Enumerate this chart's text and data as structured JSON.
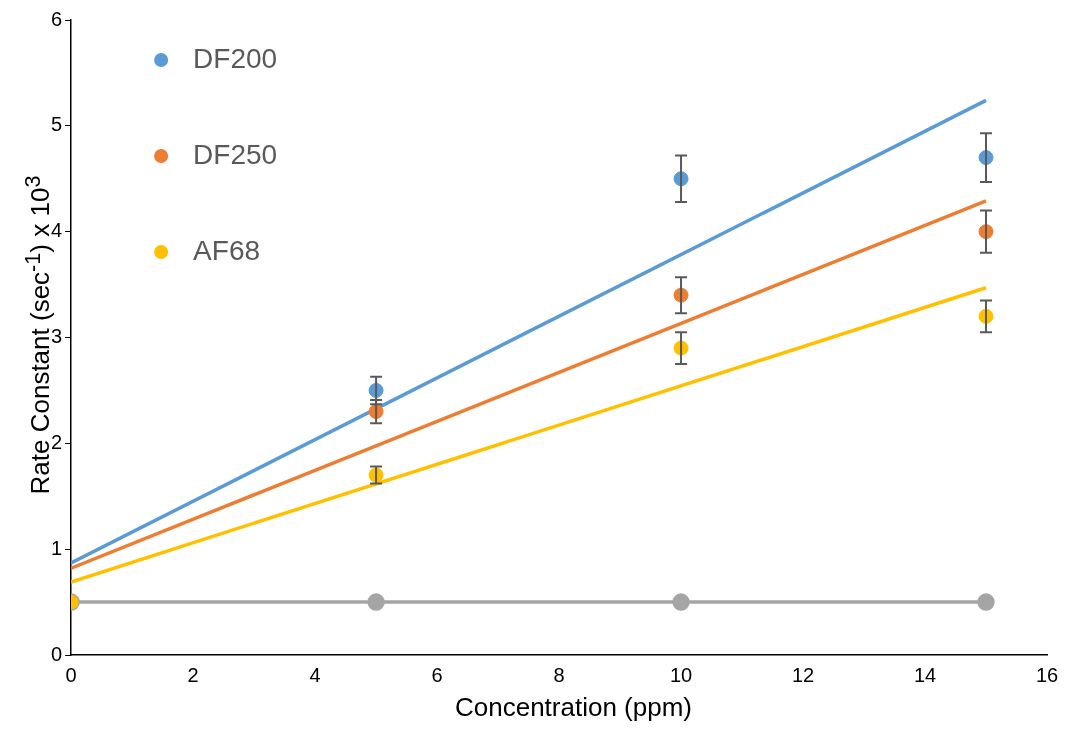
{
  "chart_data": {
    "type": "scatter",
    "xlabel": "Concentration (ppm)",
    "ylabel": "Rate Constant (sec$^{-1}$) x 10$^{3}$",
    "xlim": [
      0,
      16
    ],
    "xticks": [
      0,
      2,
      4,
      6,
      8,
      10,
      12,
      14,
      16
    ],
    "ylim": [
      0,
      6
    ],
    "yticks": [
      0,
      1,
      2,
      3,
      4,
      5,
      6
    ],
    "grid": false,
    "legend": "top left",
    "marker": "circle",
    "series": [
      {
        "type": "line",
        "color": "#a5a5a5",
        "x": [
          0,
          5,
          10,
          15
        ],
        "values": [
          0.5,
          0.5,
          0.5,
          0.5
        ]
      },
      {
        "type": "line",
        "marker": "none",
        "color": "#5b9bd5",
        "x": [
          0,
          15
        ],
        "values": [
          0.87,
          5.24
        ]
      },
      {
        "type": "line",
        "marker": "none",
        "color": "#ed7d31",
        "x": [
          0,
          15
        ],
        "values": [
          0.82,
          4.29
        ]
      },
      {
        "type": "line",
        "marker": "none",
        "color": "#ffc000",
        "x": [
          0,
          15
        ],
        "values": [
          0.69,
          3.47
        ]
      },
      {
        "name": "DF200",
        "color": "#5b9bd5",
        "x": [
          5,
          10,
          15
        ],
        "values": [
          2.5,
          4.5,
          4.7
        ],
        "errors": [
          0.13,
          0.22,
          0.23
        ]
      },
      {
        "name": "DF250",
        "color": "#ed7d31",
        "x": [
          5,
          10,
          15
        ],
        "values": [
          2.3,
          3.4,
          4.0
        ],
        "errors": [
          0.11,
          0.17,
          0.2
        ]
      },
      {
        "name": "AF68",
        "color": "#ffc000",
        "x": [
          0,
          5,
          10,
          15
        ],
        "values": [
          0.5,
          1.7,
          2.9,
          3.2
        ],
        "errors": [
          null,
          0.08,
          0.15,
          0.15
        ]
      }
    ]
  }
}
